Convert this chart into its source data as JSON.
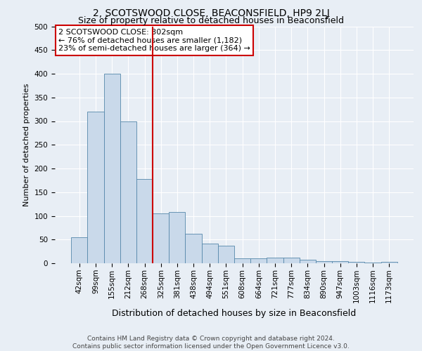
{
  "title": "2, SCOTSWOOD CLOSE, BEACONSFIELD, HP9 2LJ",
  "subtitle": "Size of property relative to detached houses in Beaconsfield",
  "xlabel": "Distribution of detached houses by size in Beaconsfield",
  "ylabel": "Number of detached properties",
  "footer_line1": "Contains HM Land Registry data © Crown copyright and database right 2024.",
  "footer_line2": "Contains public sector information licensed under the Open Government Licence v3.0.",
  "categories": [
    "42sqm",
    "99sqm",
    "155sqm",
    "212sqm",
    "268sqm",
    "325sqm",
    "381sqm",
    "438sqm",
    "494sqm",
    "551sqm",
    "608sqm",
    "664sqm",
    "721sqm",
    "777sqm",
    "834sqm",
    "890sqm",
    "947sqm",
    "1003sqm",
    "1116sqm",
    "1173sqm"
  ],
  "values": [
    55,
    320,
    400,
    300,
    178,
    105,
    108,
    62,
    42,
    37,
    10,
    10,
    12,
    12,
    8,
    5,
    4,
    3,
    1,
    3
  ],
  "bar_color": "#c9d9ea",
  "bar_edge_color": "#5588aa",
  "vline_color": "#cc0000",
  "vline_x_index": 4.5,
  "annotation_box_text": "2 SCOTSWOOD CLOSE: 302sqm\n← 76% of detached houses are smaller (1,182)\n23% of semi-detached houses are larger (364) →",
  "annotation_box_facecolor": "#ffffff",
  "annotation_box_edgecolor": "#cc0000",
  "ylim": [
    0,
    500
  ],
  "yticks": [
    0,
    50,
    100,
    150,
    200,
    250,
    300,
    350,
    400,
    450,
    500
  ],
  "background_color": "#e8eef5",
  "grid_color": "#ffffff",
  "title_fontsize": 10,
  "subtitle_fontsize": 9,
  "ylabel_fontsize": 8,
  "xlabel_fontsize": 9,
  "tick_fontsize": 7.5,
  "ann_fontsize": 8,
  "footer_fontsize": 6.5
}
